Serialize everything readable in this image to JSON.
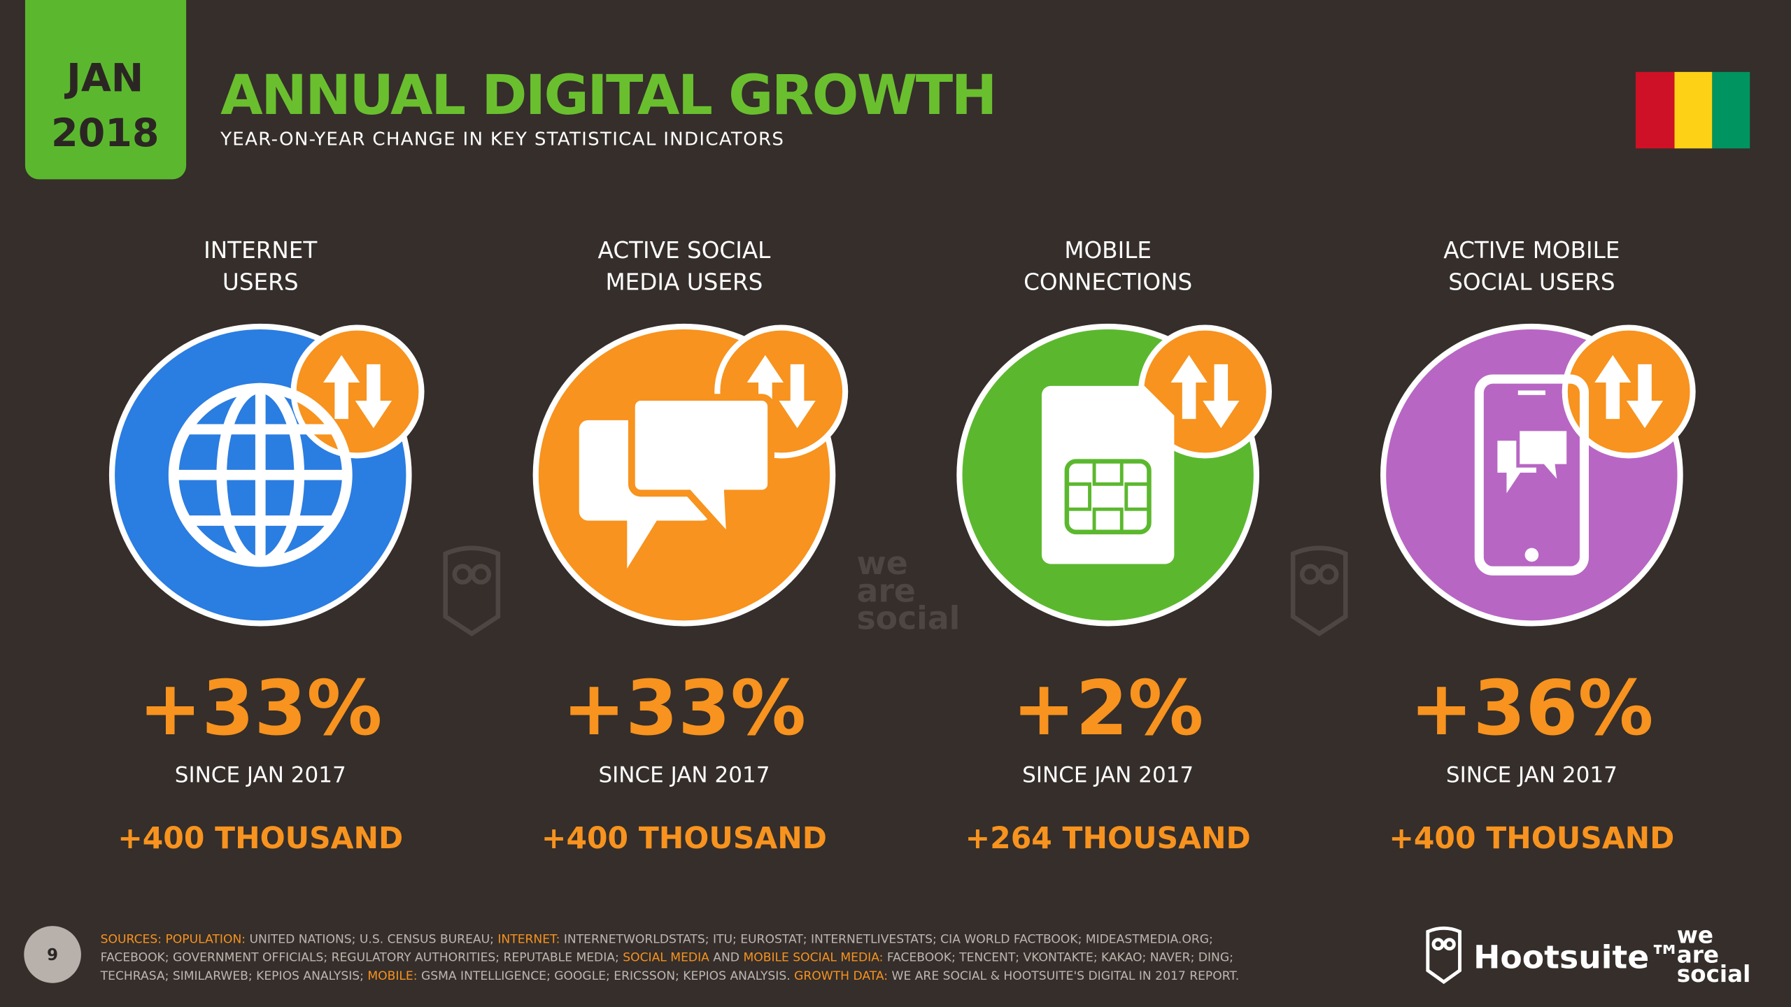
{
  "header": {
    "month": "JAN",
    "year": "2018",
    "title": "ANNUAL DIGITAL GROWTH",
    "subtitle": "YEAR-ON-YEAR CHANGE IN KEY STATISTICAL INDICATORS"
  },
  "cards": [
    {
      "label": [
        "INTERNET",
        "USERS"
      ],
      "change": "+33%",
      "since": "SINCE JAN 2017",
      "absolute": "+400 THOUSAND",
      "color": "#2a7de1"
    },
    {
      "label": [
        "ACTIVE SOCIAL",
        "MEDIA USERS"
      ],
      "change": "+33%",
      "since": "SINCE JAN 2017",
      "absolute": "+400 THOUSAND",
      "color": "#f7931e"
    },
    {
      "label": [
        "MOBILE",
        "CONNECTIONS"
      ],
      "change": "+2%",
      "since": "SINCE JAN 2017",
      "absolute": "+264 THOUSAND",
      "color": "#5bb82e"
    },
    {
      "label": [
        "ACTIVE MOBILE",
        "SOCIAL USERS"
      ],
      "change": "+36%",
      "since": "SINCE JAN 2017",
      "absolute": "+400 THOUSAND",
      "color": "#b866c4"
    }
  ],
  "watermark": [
    "we",
    "are",
    "social"
  ],
  "footer": {
    "page": "9",
    "sources": [
      [
        {
          "text": "SOURCES: ",
          "color": "#f7931e"
        },
        {
          "text": "POPULATION:",
          "color": "#f7931e"
        },
        {
          "text": " UNITED NATIONS; U.S. CENSUS BUREAU; ",
          "color": "#bdb6b0"
        },
        {
          "text": "INTERNET:",
          "color": "#f7931e"
        },
        {
          "text": " INTERNETWORLDSTATS; ITU; EUROSTAT; INTERNETLIVESTATS; CIA WORLD FACTBOOK; MIDEASTMEDIA.ORG;",
          "color": "#bdb6b0"
        }
      ],
      [
        {
          "text": "FACEBOOK; GOVERNMENT OFFICIALS; REGULATORY AUTHORITIES; REPUTABLE MEDIA; ",
          "color": "#bdb6b0"
        },
        {
          "text": "SOCIAL MEDIA",
          "color": "#f7931e"
        },
        {
          "text": " AND ",
          "color": "#bdb6b0"
        },
        {
          "text": "MOBILE SOCIAL MEDIA:",
          "color": "#f7931e"
        },
        {
          "text": " FACEBOOK; TENCENT; VKONTAKTE; KAKAO; NAVER; DING;",
          "color": "#bdb6b0"
        }
      ],
      [
        {
          "text": "TECHRASA; SIMILARWEB; KEPIOS ANALYSIS; ",
          "color": "#bdb6b0"
        },
        {
          "text": "MOBILE:",
          "color": "#f7931e"
        },
        {
          "text": " GSMA INTELLIGENCE; GOOGLE; ERICSSON; KEPIOS ANALYSIS. ",
          "color": "#bdb6b0"
        },
        {
          "text": "GROWTH DATA:",
          "color": "#f7931e"
        },
        {
          "text": " WE ARE SOCIAL & HOOTSUITE'S DIGITAL IN 2017 REPORT.",
          "color": "#bdb6b0"
        }
      ]
    ],
    "brand": "Hootsuite™",
    "brand2": [
      "we",
      "are",
      "social"
    ]
  }
}
